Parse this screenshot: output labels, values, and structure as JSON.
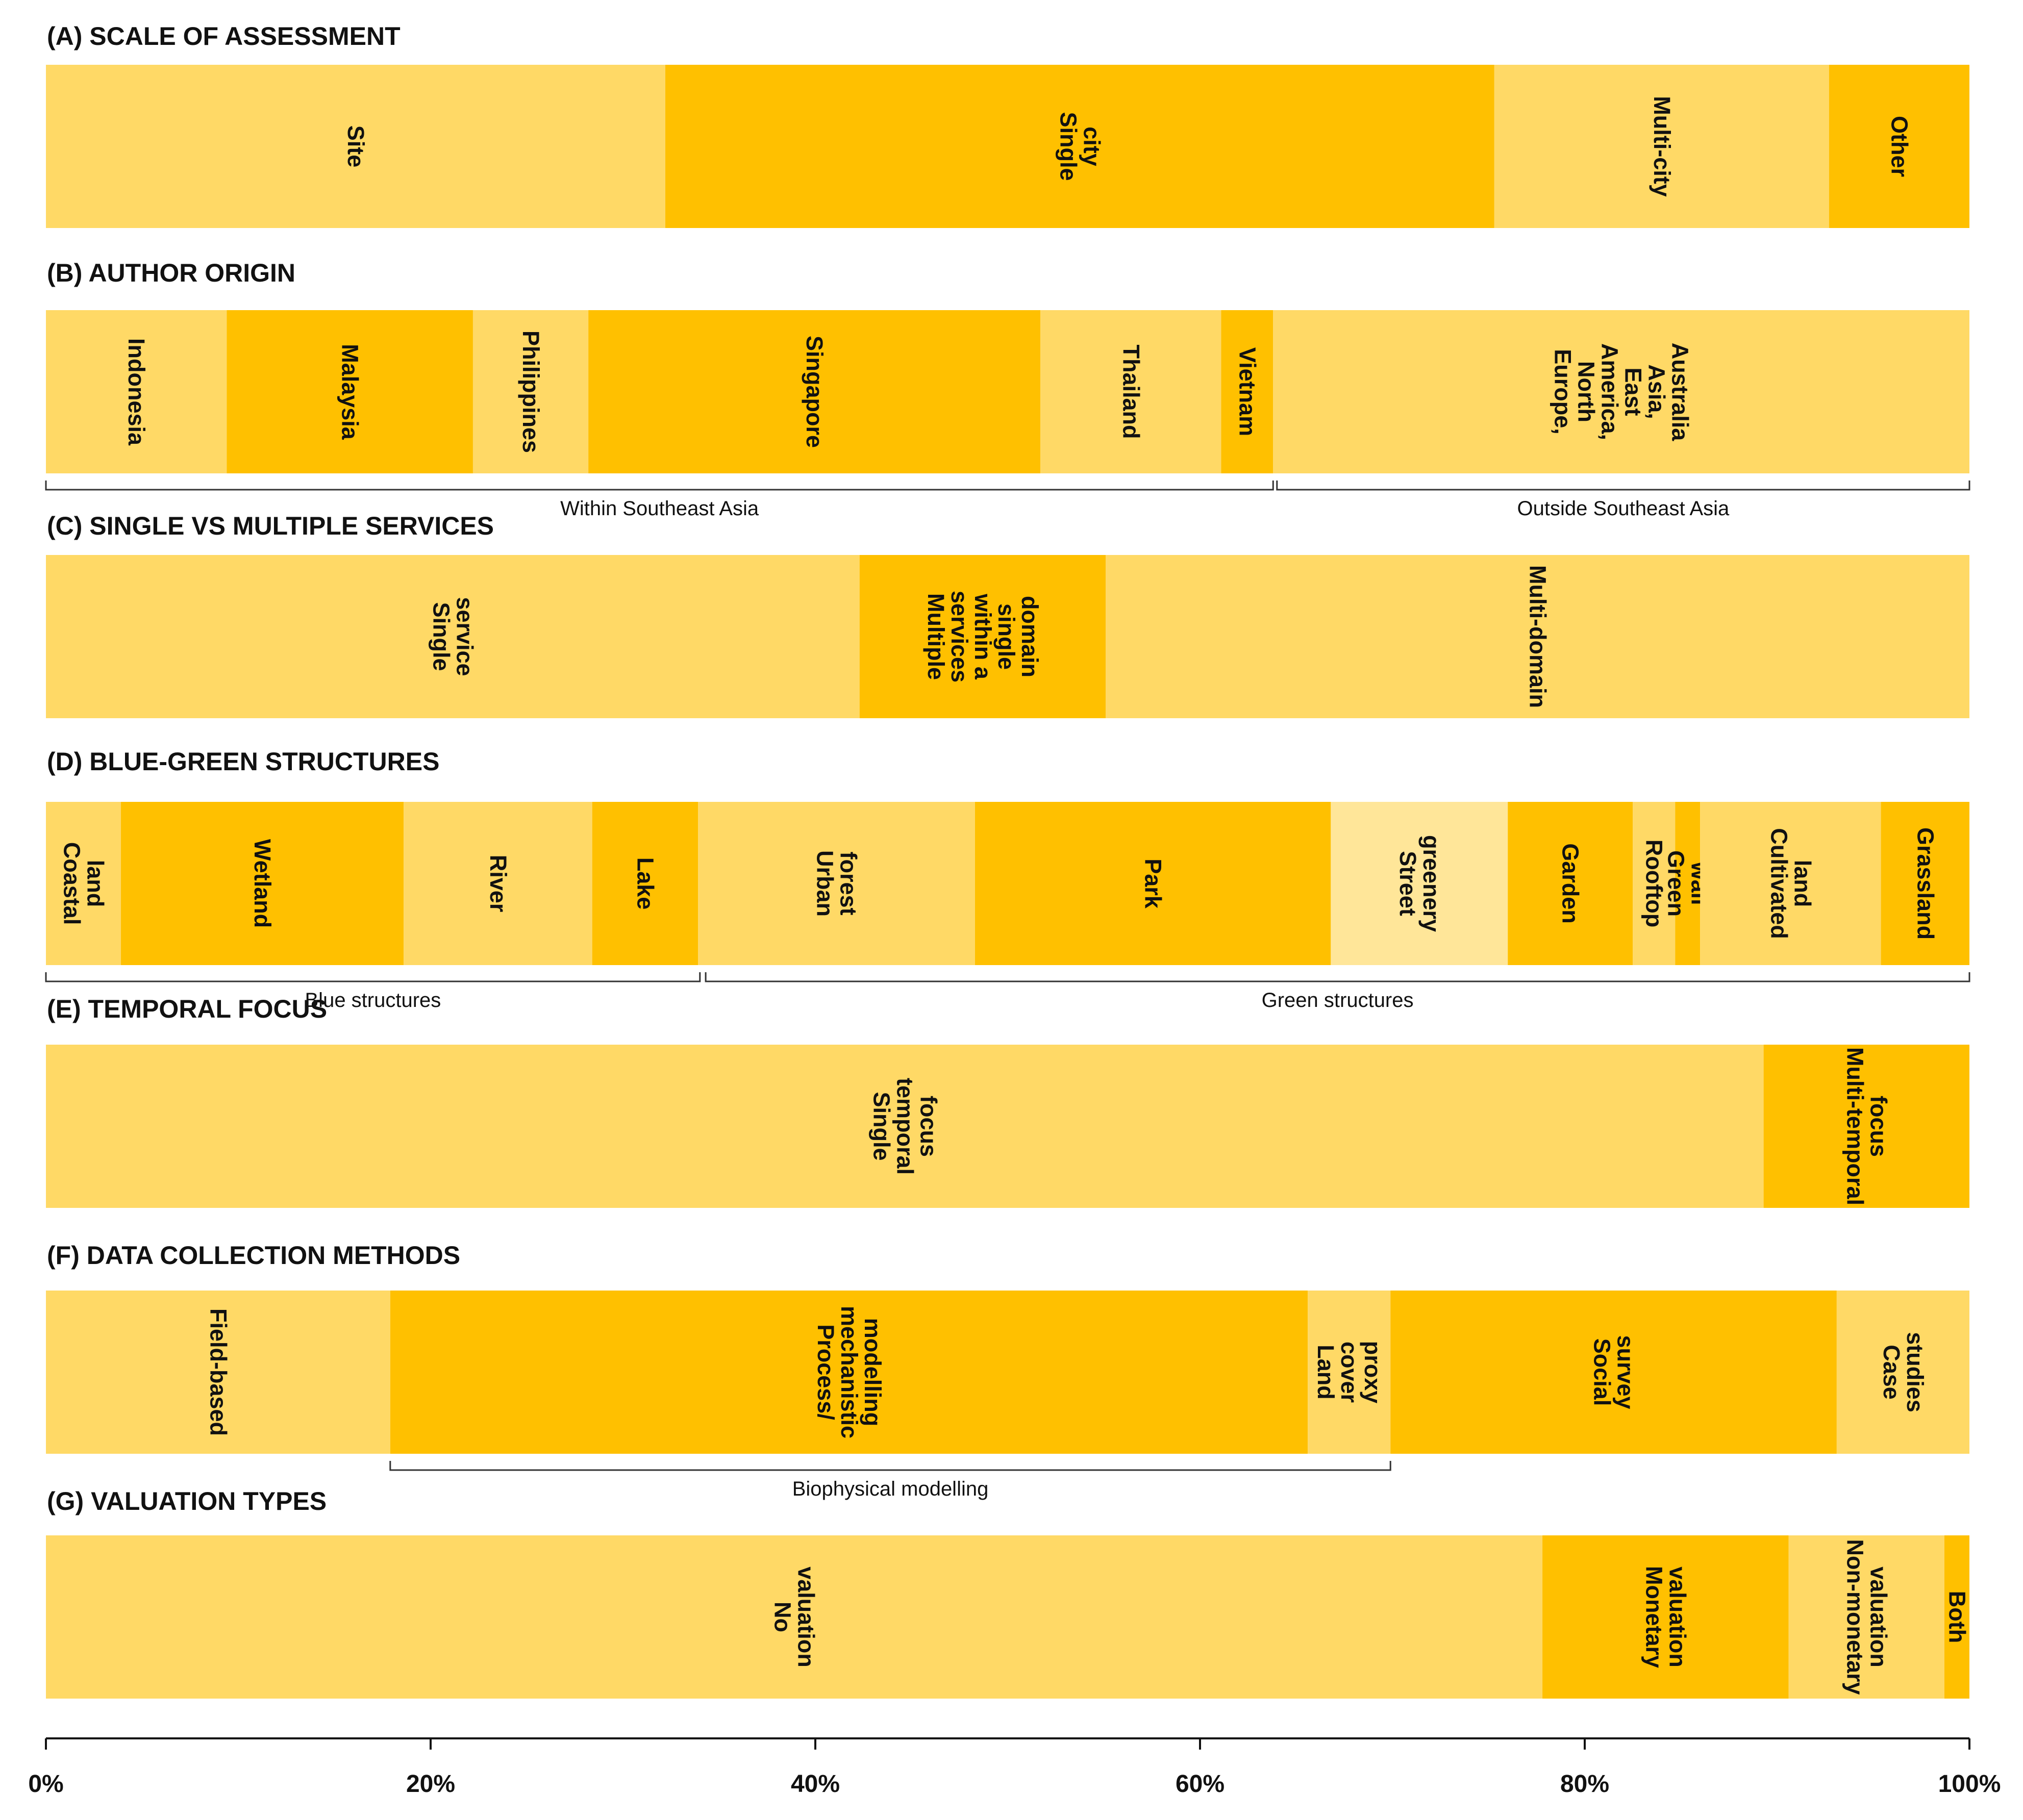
{
  "colors": {
    "light": "#FFD966",
    "dark": "#FFC000",
    "pale": "#FFE699"
  },
  "chart_data": {
    "type": "stacked-bar",
    "orientation": "horizontal",
    "xaxis": {
      "ticks": [
        0,
        20,
        40,
        60,
        80,
        100
      ],
      "tick_labels": [
        "0%",
        "20%",
        "40%",
        "60%",
        "80%",
        "100%"
      ],
      "unit": "%"
    },
    "panels": [
      {
        "title": "(A) SCALE OF ASSESSMENT",
        "segments": [
          {
            "label": "Site",
            "value": 32.2,
            "shade": "light"
          },
          {
            "label": "Single city",
            "value": 43.1,
            "shade": "dark"
          },
          {
            "label": "Multi-city",
            "value": 17.4,
            "shade": "light"
          },
          {
            "label": "Other",
            "value": 7.3,
            "shade": "dark"
          }
        ],
        "groups": []
      },
      {
        "title": "(B) AUTHOR ORIGIN",
        "segments": [
          {
            "label": "Indonesia",
            "value": 9.4,
            "shade": "light"
          },
          {
            "label": "Malaysia",
            "value": 12.8,
            "shade": "dark"
          },
          {
            "label": "Philippines",
            "value": 6.0,
            "shade": "light"
          },
          {
            "label": "Singapore",
            "value": 23.5,
            "shade": "dark"
          },
          {
            "label": "Thailand",
            "value": 9.4,
            "shade": "light"
          },
          {
            "label": "Vietnam",
            "value": 2.7,
            "shade": "dark"
          },
          {
            "label": "Europe, North America, East Asia, Australia",
            "value": 36.2,
            "shade": "light"
          }
        ],
        "groups": [
          {
            "label": "Within Southeast Asia",
            "from": 0,
            "to": 63.8
          },
          {
            "label": "Outside Southeast Asia",
            "from": 64.0,
            "to": 100
          }
        ]
      },
      {
        "title": "(C) SINGLE VS MULTIPLE SERVICES",
        "segments": [
          {
            "label": "Single service",
            "value": 42.3,
            "shade": "light"
          },
          {
            "label": "Multiple services within a single domain",
            "value": 12.8,
            "shade": "dark"
          },
          {
            "label": "Multi-domain",
            "value": 44.9,
            "shade": "light"
          }
        ],
        "groups": []
      },
      {
        "title": "(D) BLUE-GREEN STRUCTURES",
        "segments": [
          {
            "label": "Coastal land",
            "value": 3.9,
            "shade": "light"
          },
          {
            "label": "Wetland",
            "value": 14.7,
            "shade": "dark"
          },
          {
            "label": "River",
            "value": 9.8,
            "shade": "light"
          },
          {
            "label": "Lake",
            "value": 5.5,
            "shade": "dark"
          },
          {
            "label": "Urban forest",
            "value": 14.4,
            "shade": "light"
          },
          {
            "label": "Park",
            "value": 18.5,
            "shade": "dark"
          },
          {
            "label": "Street greenery",
            "value": 9.2,
            "shade": "pale"
          },
          {
            "label": "Garden",
            "value": 6.5,
            "shade": "dark"
          },
          {
            "label": "Rooftop",
            "value": 2.2,
            "shade": "light"
          },
          {
            "label": "Green wall",
            "value": 1.3,
            "shade": "dark"
          },
          {
            "label": "Cultivated land",
            "value": 9.4,
            "shade": "light"
          },
          {
            "label": "Grassland",
            "value": 4.6,
            "shade": "dark"
          }
        ],
        "groups": [
          {
            "label": "Blue structures",
            "from": 0,
            "to": 34.0
          },
          {
            "label": "Green structures",
            "from": 34.3,
            "to": 100
          }
        ]
      },
      {
        "title": "(E) TEMPORAL FOCUS",
        "segments": [
          {
            "label": "Single temporal focus",
            "value": 89.3,
            "shade": "light"
          },
          {
            "label": "Multi-temporal focus",
            "value": 10.7,
            "shade": "dark"
          }
        ],
        "groups": []
      },
      {
        "title": "(F) DATA COLLECTION METHODS",
        "segments": [
          {
            "label": "Field-based",
            "value": 17.9,
            "shade": "light"
          },
          {
            "label": "Process/ mechanistic modelling",
            "value": 47.7,
            "shade": "dark"
          },
          {
            "label": "Land cover proxy",
            "value": 4.3,
            "shade": "light"
          },
          {
            "label": "Social survey",
            "value": 23.2,
            "shade": "dark"
          },
          {
            "label": "Case studies",
            "value": 6.9,
            "shade": "light"
          }
        ],
        "groups": [
          {
            "label": "Biophysical modelling",
            "from": 17.9,
            "to": 69.9
          }
        ]
      },
      {
        "title": "(G) VALUATION TYPES",
        "segments": [
          {
            "label": "No valuation",
            "value": 77.8,
            "shade": "light"
          },
          {
            "label": "Monetary valuation",
            "value": 12.8,
            "shade": "dark"
          },
          {
            "label": "Non-monetary valuation",
            "value": 8.1,
            "shade": "light"
          },
          {
            "label": "Both",
            "value": 1.3,
            "shade": "dark"
          }
        ],
        "groups": []
      }
    ]
  }
}
